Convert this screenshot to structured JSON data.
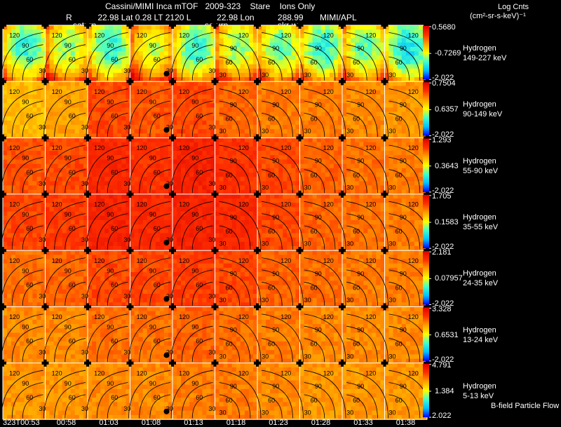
{
  "header": {
    "title": "Cassini/MIMI Inca mTOF",
    "date": "2009-323",
    "mode": "Stare",
    "species": "Ions Only",
    "r_label": "R",
    "r_value": "22.98",
    "lat_label": "Lat",
    "lat_value": "0.28",
    "lt_label": "LT",
    "lt_value": "2120",
    "l_label": "L",
    "l_value": "22.98",
    "lon_label": "Lon",
    "lon_value": "288.99",
    "credit": "MIMI/APL",
    "units_title": "Log Cnts",
    "units": "(cm²-sr-s-keV)⁻¹"
  },
  "overlay_labels": [
    "saturn",
    "saturn",
    "skr-w"
  ],
  "footer": {
    "legend": "B-field Particle Flow"
  },
  "chart_data": {
    "type": "heatmap",
    "time_labels": [
      "323T00:53",
      "00:58",
      "01:03",
      "01:08",
      "01:13",
      "01:18",
      "01:23",
      "01:28",
      "01:33",
      "01:38"
    ],
    "contour_labels": [
      "120",
      "90",
      "60",
      "30"
    ],
    "colormap": [
      "#0000ff",
      "#00c0ff",
      "#40ffd0",
      "#ffff00",
      "#ffa000",
      "#ff3000",
      "#e00000"
    ],
    "bands": [
      {
        "species": "Hydrogen",
        "energy": "149-227 keV",
        "max": "0.5680",
        "mid": "-0.7269",
        "min": "-2.022"
      },
      {
        "species": "Hydrogen",
        "energy": "90-149 keV",
        "max": "0.7504",
        "mid": "0.6357",
        "min": "-2.022"
      },
      {
        "species": "Hydrogen",
        "energy": "55-90 keV",
        "max": "1.293",
        "mid": "0.3643",
        "min": "-2.022"
      },
      {
        "species": "Hydrogen",
        "energy": "35-55 keV",
        "max": "1.705",
        "mid": "0.1583",
        "min": "-2.022"
      },
      {
        "species": "Hydrogen",
        "energy": "24-35 keV",
        "max": "2.181",
        "mid": "0.07957",
        "min": "-2.022"
      },
      {
        "species": "Hydrogen",
        "energy": "13-24 keV",
        "max": "3.328",
        "mid": "0.6531",
        "min": "-2.022"
      },
      {
        "species": "Hydrogen",
        "energy": "5-13 keV",
        "max": "4.791",
        "mid": "1.384",
        "min": "2.022"
      }
    ],
    "panel_level": [
      [
        0.45,
        0.55,
        0.45,
        0.6,
        0.45,
        0.55,
        0.5,
        0.45,
        0.5,
        0.4
      ],
      [
        0.62,
        0.66,
        0.8,
        0.78,
        0.8,
        0.75,
        0.72,
        0.72,
        0.7,
        0.68
      ],
      [
        0.78,
        0.8,
        0.86,
        0.84,
        0.88,
        0.84,
        0.8,
        0.76,
        0.74,
        0.72
      ],
      [
        0.8,
        0.82,
        0.88,
        0.86,
        0.88,
        0.86,
        0.8,
        0.76,
        0.74,
        0.72
      ],
      [
        0.74,
        0.76,
        0.8,
        0.8,
        0.82,
        0.8,
        0.76,
        0.74,
        0.72,
        0.72
      ],
      [
        0.7,
        0.7,
        0.74,
        0.74,
        0.76,
        0.74,
        0.72,
        0.7,
        0.7,
        0.7
      ],
      [
        0.68,
        0.68,
        0.7,
        0.7,
        0.72,
        0.72,
        0.7,
        0.68,
        0.68,
        0.68
      ]
    ]
  }
}
